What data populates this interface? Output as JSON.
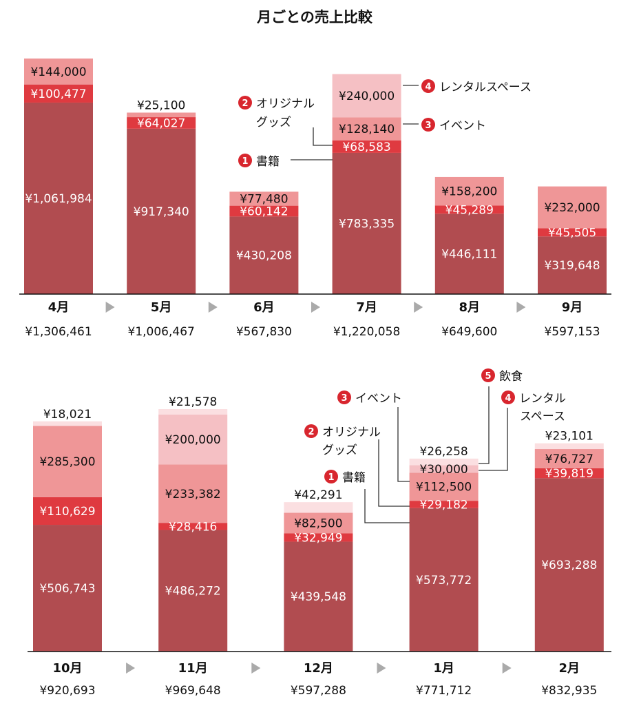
{
  "title": "月ごとの売上比較",
  "colors": {
    "書籍": "#b14c50",
    "オリジナルグッズ": "#df3a40",
    "イベント": "#ef9697",
    "レンタルスペース": "#f5c0c4",
    "飲食": "#fbdfe1",
    "arrow": "#aaaaaa"
  },
  "annotations": {
    "top": {
      "n1": "1",
      "books": "書籍",
      "n2": "2",
      "goods_1": "オリジナル",
      "goods_2": "グッズ",
      "n3": "3",
      "event": "イベント",
      "n4": "4",
      "rental": "レンタルスペース"
    },
    "bottom": {
      "n1": "1",
      "books": "書籍",
      "n2": "2",
      "goods_1": "オリジナル",
      "goods_2": "グッズ",
      "n3": "3",
      "event": "イベント",
      "n4": "4",
      "rental_1": "レンタル",
      "rental_2": "スペース",
      "n5": "5",
      "food": "飲食"
    }
  },
  "chart_data": [
    {
      "type": "bar",
      "stacked": true,
      "categories": [
        "4月",
        "5月",
        "6月",
        "7月",
        "8月",
        "9月"
      ],
      "totals": [
        1306461,
        1006467,
        567830,
        1220058,
        649600,
        597153
      ],
      "ylim": [
        0,
        1440000
      ],
      "series": [
        {
          "name": "書籍",
          "values": [
            1061984,
            917340,
            430208,
            783335,
            446111,
            319648
          ]
        },
        {
          "name": "オリジナルグッズ",
          "values": [
            100477,
            64027,
            60142,
            68583,
            45289,
            45505
          ]
        },
        {
          "name": "イベント",
          "values": [
            144000,
            25100,
            77480,
            128140,
            158200,
            232000
          ]
        },
        {
          "name": "レンタルスペース",
          "values": [
            null,
            null,
            null,
            240000,
            null,
            null
          ]
        }
      ]
    },
    {
      "type": "bar",
      "stacked": true,
      "categories": [
        "10月",
        "11月",
        "12月",
        "1月",
        "2月"
      ],
      "totals": [
        920693,
        969648,
        597288,
        771712,
        832935
      ],
      "ylim": [
        0,
        1146000
      ],
      "series": [
        {
          "name": "書籍",
          "values": [
            506743,
            486272,
            439548,
            573772,
            693288
          ]
        },
        {
          "name": "オリジナルグッズ",
          "values": [
            110629,
            28416,
            32949,
            29182,
            39819
          ]
        },
        {
          "name": "イベント",
          "values": [
            285300,
            233382,
            82500,
            112500,
            76727
          ]
        },
        {
          "name": "レンタルスペース",
          "values": [
            null,
            200000,
            null,
            30000,
            null
          ]
        },
        {
          "name": "飲食",
          "values": [
            18021,
            21578,
            42291,
            26258,
            23101
          ]
        }
      ]
    }
  ]
}
